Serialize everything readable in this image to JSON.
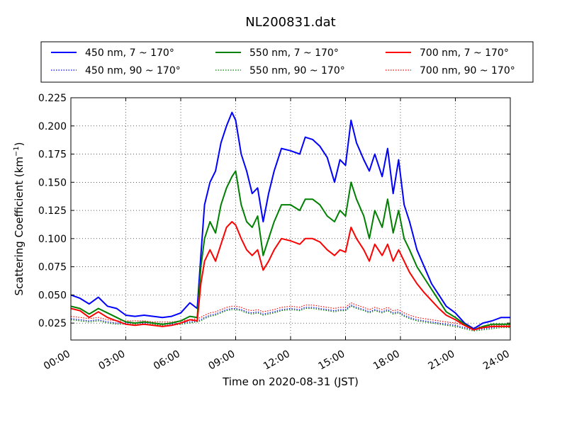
{
  "chart_data": {
    "type": "line",
    "title": "NL200831.dat",
    "xlabel": "Time on 2020-08-31 (JST)",
    "ylabel": "Scattering Coefficient (km",
    "ylabel_sup": "−1",
    "ylabel_end": ")",
    "xlim": [
      0,
      24
    ],
    "ylim": [
      0.01,
      0.225
    ],
    "x_ticks": [
      0,
      3,
      6,
      9,
      12,
      15,
      18,
      21,
      24
    ],
    "x_tick_labels": [
      "00:00",
      "03:00",
      "06:00",
      "09:00",
      "12:00",
      "15:00",
      "18:00",
      "21:00",
      "24:00"
    ],
    "y_ticks": [
      0.025,
      0.05,
      0.075,
      0.1,
      0.125,
      0.15,
      0.175,
      0.2,
      0.225
    ],
    "y_tick_labels": [
      "0.025",
      "0.050",
      "0.075",
      "0.100",
      "0.125",
      "0.150",
      "0.175",
      "0.200",
      "0.225"
    ],
    "grid": true,
    "legend_position": "top, above plot",
    "x": [
      0,
      0.5,
      1,
      1.5,
      2,
      2.5,
      3,
      3.5,
      4,
      4.5,
      5,
      5.5,
      6,
      6.5,
      6.9,
      7.1,
      7.3,
      7.6,
      7.9,
      8.2,
      8.5,
      8.8,
      9,
      9.3,
      9.6,
      9.9,
      10.2,
      10.5,
      10.8,
      11.1,
      11.5,
      12,
      12.5,
      12.8,
      13.2,
      13.6,
      14,
      14.4,
      14.7,
      15,
      15.3,
      15.6,
      16,
      16.3,
      16.6,
      17,
      17.3,
      17.6,
      17.9,
      18.2,
      18.5,
      18.9,
      19.3,
      19.7,
      20.1,
      20.5,
      21,
      21.5,
      22,
      22.5,
      23,
      23.5,
      24
    ],
    "series": [
      {
        "name": "450 nm, 7 ~ 170°",
        "color": "#0000ff",
        "dash": "solid",
        "values": [
          0.05,
          0.047,
          0.042,
          0.048,
          0.04,
          0.038,
          0.032,
          0.031,
          0.032,
          0.031,
          0.03,
          0.031,
          0.034,
          0.043,
          0.038,
          0.085,
          0.13,
          0.15,
          0.16,
          0.185,
          0.2,
          0.212,
          0.205,
          0.175,
          0.16,
          0.14,
          0.145,
          0.115,
          0.14,
          0.16,
          0.18,
          0.178,
          0.175,
          0.19,
          0.188,
          0.182,
          0.172,
          0.15,
          0.17,
          0.165,
          0.205,
          0.185,
          0.17,
          0.16,
          0.175,
          0.155,
          0.18,
          0.14,
          0.17,
          0.13,
          0.115,
          0.09,
          0.075,
          0.06,
          0.05,
          0.04,
          0.034,
          0.025,
          0.02,
          0.025,
          0.027,
          0.03,
          0.03
        ]
      },
      {
        "name": "550 nm, 7 ~ 170°",
        "color": "#008000",
        "dash": "solid",
        "values": [
          0.04,
          0.038,
          0.033,
          0.038,
          0.034,
          0.03,
          0.026,
          0.025,
          0.026,
          0.025,
          0.024,
          0.025,
          0.027,
          0.031,
          0.03,
          0.075,
          0.1,
          0.115,
          0.105,
          0.13,
          0.145,
          0.155,
          0.16,
          0.13,
          0.115,
          0.11,
          0.12,
          0.085,
          0.1,
          0.115,
          0.13,
          0.13,
          0.125,
          0.135,
          0.135,
          0.13,
          0.12,
          0.115,
          0.125,
          0.12,
          0.15,
          0.135,
          0.12,
          0.1,
          0.125,
          0.11,
          0.135,
          0.105,
          0.125,
          0.1,
          0.09,
          0.075,
          0.065,
          0.055,
          0.045,
          0.035,
          0.03,
          0.024,
          0.019,
          0.022,
          0.024,
          0.024,
          0.024
        ]
      },
      {
        "name": "700 nm, 7 ~ 170°",
        "color": "#ff0000",
        "dash": "solid",
        "values": [
          0.038,
          0.036,
          0.03,
          0.035,
          0.03,
          0.027,
          0.024,
          0.023,
          0.024,
          0.023,
          0.022,
          0.023,
          0.025,
          0.028,
          0.027,
          0.06,
          0.08,
          0.09,
          0.08,
          0.095,
          0.11,
          0.115,
          0.112,
          0.1,
          0.09,
          0.085,
          0.09,
          0.072,
          0.08,
          0.09,
          0.1,
          0.098,
          0.095,
          0.1,
          0.1,
          0.097,
          0.09,
          0.085,
          0.09,
          0.088,
          0.11,
          0.1,
          0.09,
          0.08,
          0.095,
          0.085,
          0.095,
          0.08,
          0.09,
          0.08,
          0.07,
          0.06,
          0.052,
          0.045,
          0.038,
          0.032,
          0.028,
          0.023,
          0.019,
          0.021,
          0.022,
          0.022,
          0.022
        ]
      },
      {
        "name": "450 nm, 90 ~ 170°",
        "color": "#0000ff",
        "dash": "dotted",
        "values": [
          0.029,
          0.028,
          0.027,
          0.028,
          0.026,
          0.025,
          0.025,
          0.025,
          0.025,
          0.025,
          0.024,
          0.024,
          0.025,
          0.026,
          0.027,
          0.028,
          0.03,
          0.032,
          0.033,
          0.035,
          0.037,
          0.038,
          0.038,
          0.037,
          0.035,
          0.034,
          0.035,
          0.033,
          0.034,
          0.035,
          0.037,
          0.038,
          0.037,
          0.039,
          0.039,
          0.038,
          0.037,
          0.036,
          0.037,
          0.037,
          0.041,
          0.039,
          0.037,
          0.035,
          0.037,
          0.035,
          0.037,
          0.034,
          0.035,
          0.032,
          0.03,
          0.028,
          0.027,
          0.026,
          0.025,
          0.024,
          0.023,
          0.021,
          0.019,
          0.02,
          0.021,
          0.022,
          0.022
        ]
      },
      {
        "name": "550 nm, 90 ~ 170°",
        "color": "#008000",
        "dash": "dotted",
        "values": [
          0.028,
          0.027,
          0.026,
          0.027,
          0.025,
          0.024,
          0.024,
          0.024,
          0.024,
          0.024,
          0.023,
          0.023,
          0.024,
          0.025,
          0.026,
          0.027,
          0.029,
          0.031,
          0.032,
          0.034,
          0.036,
          0.037,
          0.037,
          0.036,
          0.034,
          0.033,
          0.034,
          0.032,
          0.033,
          0.034,
          0.036,
          0.037,
          0.036,
          0.038,
          0.038,
          0.037,
          0.036,
          0.035,
          0.036,
          0.036,
          0.04,
          0.038,
          0.036,
          0.034,
          0.036,
          0.034,
          0.036,
          0.033,
          0.034,
          0.031,
          0.029,
          0.027,
          0.026,
          0.025,
          0.024,
          0.023,
          0.022,
          0.02,
          0.018,
          0.019,
          0.02,
          0.021,
          0.021
        ]
      },
      {
        "name": "700 nm, 90 ~ 170°",
        "color": "#ff0000",
        "dash": "dotted",
        "values": [
          0.031,
          0.03,
          0.029,
          0.03,
          0.028,
          0.027,
          0.027,
          0.027,
          0.027,
          0.026,
          0.026,
          0.026,
          0.027,
          0.028,
          0.029,
          0.03,
          0.032,
          0.034,
          0.035,
          0.037,
          0.039,
          0.04,
          0.04,
          0.039,
          0.037,
          0.036,
          0.037,
          0.035,
          0.036,
          0.037,
          0.039,
          0.04,
          0.039,
          0.041,
          0.041,
          0.04,
          0.039,
          0.038,
          0.039,
          0.039,
          0.043,
          0.041,
          0.039,
          0.037,
          0.039,
          0.037,
          0.039,
          0.036,
          0.037,
          0.034,
          0.032,
          0.03,
          0.029,
          0.028,
          0.027,
          0.026,
          0.025,
          0.023,
          0.021,
          0.022,
          0.023,
          0.023,
          0.023
        ]
      }
    ]
  }
}
